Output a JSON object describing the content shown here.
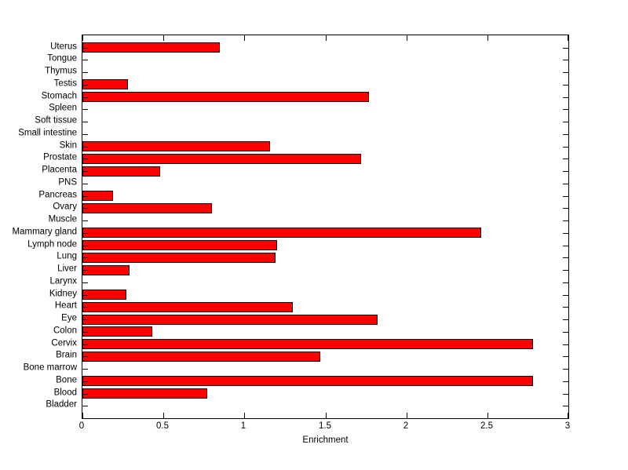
{
  "window": {
    "background": "#ffffff"
  },
  "chart_data": {
    "type": "bar",
    "orientation": "horizontal",
    "title": "",
    "xlabel": "Enrichment",
    "ylabel": "",
    "xlim": [
      0,
      3
    ],
    "xticks": [
      0,
      0.5,
      1,
      1.5,
      2,
      2.5,
      3
    ],
    "xtick_labels": [
      "0",
      "0.5",
      "1",
      "1.5",
      "2",
      "2.5",
      "3"
    ],
    "grid": false,
    "legend": null,
    "bar_color": "#ff0000",
    "bar_edge_color": "#000000",
    "axis_color": "#000000",
    "category_order": "top-to-bottom",
    "categories": [
      "Uterus",
      "Tongue",
      "Thymus",
      "Testis",
      "Stomach",
      "Spleen",
      "Soft tissue",
      "Small intestine",
      "Skin",
      "Prostate",
      "Placenta",
      "PNS",
      "Pancreas",
      "Ovary",
      "Muscle",
      "Mammary gland",
      "Lymph node",
      "Lung",
      "Liver",
      "Larynx",
      "Kidney",
      "Heart",
      "Eye",
      "Colon",
      "Cervix",
      "Brain",
      "Bone marrow",
      "Bone",
      "Blood",
      "Bladder"
    ],
    "values": [
      0.85,
      0,
      0,
      0.28,
      1.77,
      0,
      0,
      0,
      1.16,
      1.72,
      0.48,
      0,
      0.19,
      0.8,
      0,
      2.46,
      1.2,
      1.19,
      0.29,
      0,
      0.27,
      1.3,
      1.82,
      0.43,
      2.78,
      1.47,
      0,
      2.78,
      0.77,
      0
    ]
  }
}
